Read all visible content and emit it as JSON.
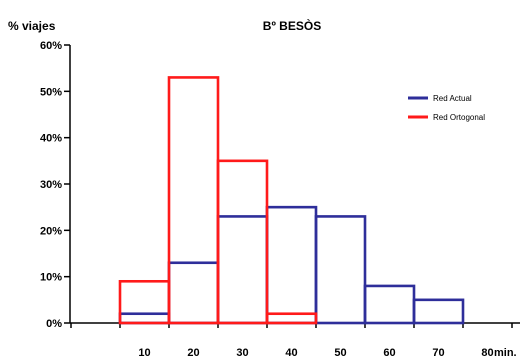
{
  "chart_data": {
    "type": "histogram",
    "title": "Bº BESÒS",
    "ylabel": "% viajes",
    "xlabel": "min.",
    "ylim": [
      0,
      60
    ],
    "yticks": [
      "0%",
      "10%",
      "20%",
      "30%",
      "40%",
      "50%",
      "60%"
    ],
    "xticks": [
      "10",
      "20",
      "30",
      "40",
      "50",
      "60",
      "70",
      "80"
    ],
    "bin_edges": [
      10,
      20,
      30,
      40,
      50,
      60,
      70,
      80
    ],
    "grid": false,
    "legend_position": "right",
    "series": [
      {
        "name": "Red Actual",
        "color": "#2e2e9a",
        "values": [
          2,
          13,
          23,
          25,
          23,
          8,
          5
        ]
      },
      {
        "name": "Red Ortogonal",
        "color": "#ff1a1a",
        "values": [
          9,
          53,
          35,
          2,
          0,
          0,
          0
        ]
      }
    ]
  }
}
